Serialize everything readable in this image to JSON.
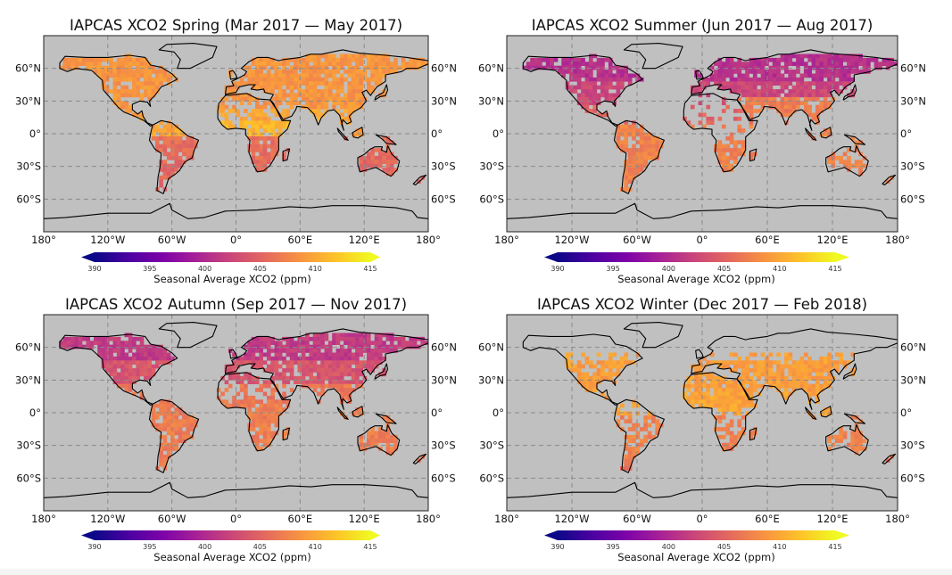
{
  "figure": {
    "panels": [
      {
        "id": "spring",
        "title": "IAPCAS XCO2 Spring (Mar 2017 — May 2017)"
      },
      {
        "id": "summer",
        "title": "IAPCAS XCO2 Summer (Jun 2017 — Aug 2017)"
      },
      {
        "id": "autumn",
        "title": "IAPCAS XCO2 Autumn (Sep 2017 — Nov 2017)"
      },
      {
        "id": "winter",
        "title": "IAPCAS XCO2 Winter (Dec 2017 — Feb 2018)"
      }
    ],
    "lat_ticks": [
      {
        "value": 60,
        "label": "60°N"
      },
      {
        "value": 30,
        "label": "30°N"
      },
      {
        "value": 0,
        "label": "0°"
      },
      {
        "value": -30,
        "label": "30°S"
      },
      {
        "value": -60,
        "label": "60°S"
      }
    ],
    "lon_ticks": [
      {
        "value": -180,
        "label": "180°"
      },
      {
        "value": -120,
        "label": "120°W"
      },
      {
        "value": -60,
        "label": "60°W"
      },
      {
        "value": 0,
        "label": "0°"
      },
      {
        "value": 60,
        "label": "60°E"
      },
      {
        "value": 120,
        "label": "120°E"
      },
      {
        "value": 180,
        "label": "180°"
      }
    ],
    "colorbar": {
      "label": "Seasonal Average XCO2 (ppm)",
      "ticks": [
        "390",
        "395",
        "400",
        "405",
        "410",
        "415"
      ],
      "vmin": 390,
      "vmax": 415,
      "extend": "both",
      "colormap": "plasma",
      "colors": [
        "#0d0887",
        "#4c02a1",
        "#7e03a8",
        "#a92395",
        "#cc4778",
        "#e56b5d",
        "#f89540",
        "#fdc328",
        "#f0f921"
      ]
    },
    "colors": {
      "ocean": "#c0c0c0",
      "coastline": "#000000",
      "grid": "#8a8a8a"
    }
  },
  "chart_data": {
    "type": "heatmap",
    "title": [
      "IAPCAS XCO2 Spring (Mar 2017 — May 2017)",
      "IAPCAS XCO2 Summer (Jun 2017 — Aug 2017)",
      "IAPCAS XCO2 Autumn (Sep 2017 — Nov 2017)",
      "IAPCAS XCO2 Winter (Dec 2017 — Feb 2018)"
    ],
    "xlim": [
      -180,
      180
    ],
    "ylim": [
      -90,
      90
    ],
    "value_range": [
      390,
      415
    ],
    "units": "ppm",
    "grid": true,
    "legend": "colorbar-bottom"
  }
}
